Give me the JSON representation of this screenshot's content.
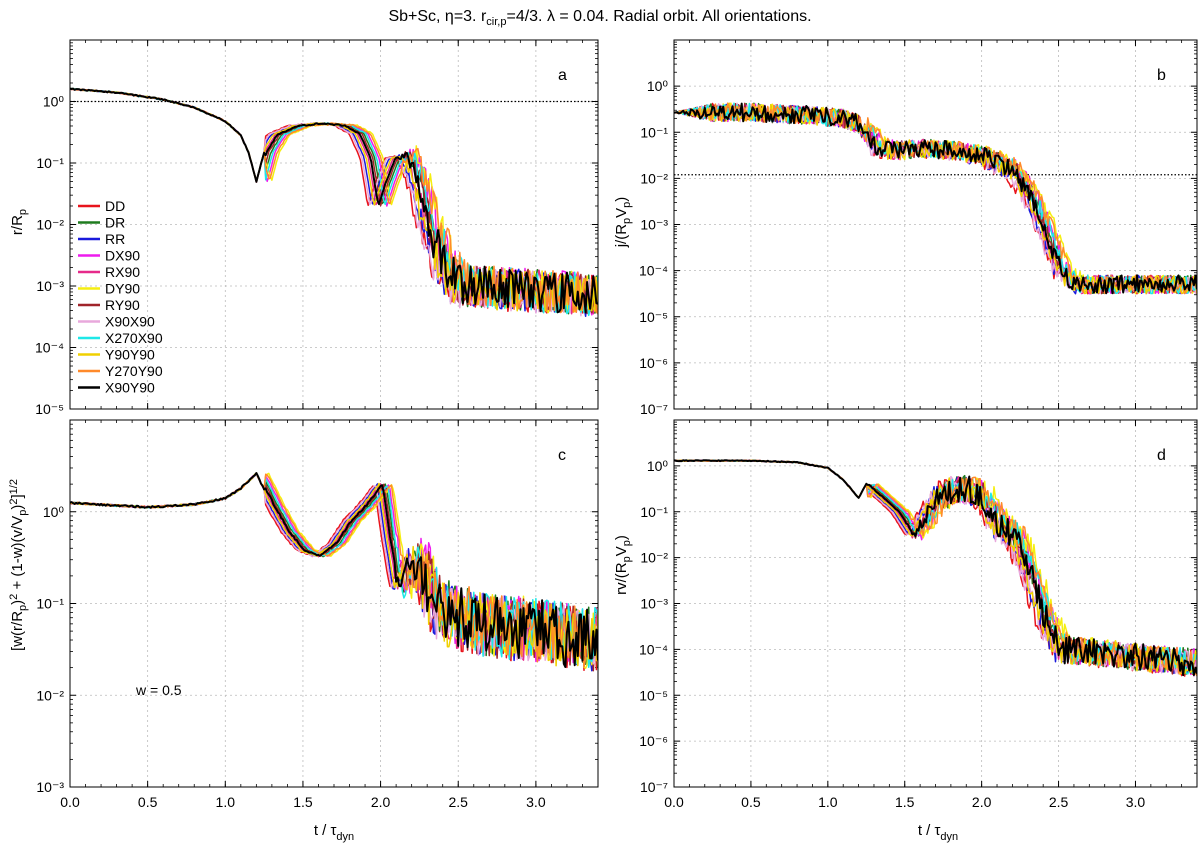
{
  "title": {
    "pre": "Sb+Sc, η=3. r",
    "sub": "cir,p",
    "post": "=4/3. λ = 0.04. Radial orbit. All orientations."
  },
  "xaxis": {
    "label_main": "t / τ",
    "label_sub": "dyn",
    "ticks": [
      "0.0",
      "0.5",
      "1.0",
      "1.5",
      "2.0",
      "2.5",
      "3.0"
    ]
  },
  "series": [
    {
      "name": "DD",
      "color": "#e8141c"
    },
    {
      "name": "DR",
      "color": "#1e7b1e"
    },
    {
      "name": "RR",
      "color": "#1a1adc"
    },
    {
      "name": "DX90",
      "color": "#ee1cee"
    },
    {
      "name": "RX90",
      "color": "#e62a8a"
    },
    {
      "name": "DY90",
      "color": "#f5ee10"
    },
    {
      "name": "RY90",
      "color": "#a0242a"
    },
    {
      "name": "X90X90",
      "color": "#e8a8dc"
    },
    {
      "name": "X270X90",
      "color": "#1ee8e8"
    },
    {
      "name": "Y90Y90",
      "color": "#f0d000"
    },
    {
      "name": "Y270Y90",
      "color": "#ff8a2a"
    },
    {
      "name": "X90Y90",
      "color": "#000000"
    }
  ],
  "chart_data": [
    {
      "type": "line",
      "panel": "a",
      "ylabel": "r/Rp",
      "xlim": [
        0,
        3.4
      ],
      "ylim": [
        1e-05,
        10
      ],
      "yscale": "log",
      "ytick_exponents": [
        -5,
        -4,
        -3,
        -2,
        -1,
        0
      ],
      "reference_line": 1.0,
      "legend_location": "left",
      "anchor": [
        [
          0,
          1.6
        ],
        [
          0.3,
          1.4
        ],
        [
          0.6,
          1.08
        ],
        [
          0.8,
          0.8
        ],
        [
          1.0,
          0.48
        ],
        [
          1.1,
          0.28
        ],
        [
          1.15,
          0.15
        ],
        [
          1.2,
          0.05
        ],
        [
          1.25,
          0.15
        ],
        [
          1.32,
          0.29
        ],
        [
          1.45,
          0.4
        ],
        [
          1.6,
          0.44
        ],
        [
          1.75,
          0.41
        ],
        [
          1.85,
          0.3
        ],
        [
          1.92,
          0.12
        ],
        [
          1.97,
          0.02
        ],
        [
          2.02,
          0.05
        ],
        [
          2.08,
          0.12
        ],
        [
          2.15,
          0.13
        ],
        [
          2.22,
          0.05
        ],
        [
          2.3,
          0.008
        ],
        [
          2.4,
          0.002
        ],
        [
          2.5,
          0.001
        ],
        [
          3.4,
          0.0007
        ]
      ],
      "shift_scale": 0.15,
      "noise_after": 2.1,
      "noise_amp": 0.35
    },
    {
      "type": "line",
      "panel": "b",
      "ylabel": "j/(RpVp)",
      "xlim": [
        0,
        3.4
      ],
      "ylim": [
        1e-07,
        10
      ],
      "yscale": "log",
      "ytick_exponents": [
        -7,
        -6,
        -5,
        -4,
        -3,
        -2,
        -1,
        0
      ],
      "reference_line": 0.012,
      "anchor": [
        [
          0,
          0.27
        ],
        [
          0.5,
          0.27
        ],
        [
          0.9,
          0.23
        ],
        [
          1.1,
          0.2
        ],
        [
          1.2,
          0.15
        ],
        [
          1.3,
          0.05
        ],
        [
          1.4,
          0.04
        ],
        [
          1.6,
          0.045
        ],
        [
          1.8,
          0.04
        ],
        [
          2.0,
          0.03
        ],
        [
          2.2,
          0.015
        ],
        [
          2.3,
          0.004
        ],
        [
          2.4,
          0.0008
        ],
        [
          2.5,
          0.0001
        ],
        [
          2.6,
          5e-05
        ],
        [
          3.4,
          5e-05
        ]
      ],
      "shift_scale": 0.12,
      "noise_after": 0.0,
      "noise_amp": 0.2
    },
    {
      "type": "line",
      "panel": "c",
      "ylabel": "[w(r/Rp)^2 + (1-w)(v/Vp)^2]^1/2",
      "annotation": "w = 0.5",
      "xlim": [
        0,
        3.4
      ],
      "ylim": [
        0.001,
        10
      ],
      "yscale": "log",
      "ytick_exponents": [
        -3,
        -2,
        -1,
        0
      ],
      "anchor": [
        [
          0,
          1.25
        ],
        [
          0.5,
          1.12
        ],
        [
          0.8,
          1.2
        ],
        [
          1.0,
          1.4
        ],
        [
          1.1,
          1.8
        ],
        [
          1.2,
          2.6
        ],
        [
          1.3,
          1.2
        ],
        [
          1.4,
          0.6
        ],
        [
          1.5,
          0.38
        ],
        [
          1.6,
          0.33
        ],
        [
          1.7,
          0.45
        ],
        [
          1.8,
          0.8
        ],
        [
          1.9,
          1.2
        ],
        [
          2.0,
          2.0
        ],
        [
          2.05,
          0.5
        ],
        [
          2.1,
          0.15
        ],
        [
          2.2,
          0.3
        ],
        [
          2.3,
          0.15
        ],
        [
          2.4,
          0.08
        ],
        [
          2.6,
          0.06
        ],
        [
          3.0,
          0.05
        ],
        [
          3.4,
          0.04
        ]
      ],
      "shift_scale": 0.12,
      "noise_after": 2.05,
      "noise_amp": 0.35
    },
    {
      "type": "line",
      "panel": "d",
      "ylabel": "rv/(RpVp)",
      "xlim": [
        0,
        3.4
      ],
      "ylim": [
        1e-07,
        10
      ],
      "yscale": "log",
      "ytick_exponents": [
        -7,
        -6,
        -5,
        -4,
        -3,
        -2,
        -1,
        0
      ],
      "anchor": [
        [
          0,
          1.3
        ],
        [
          0.5,
          1.3
        ],
        [
          0.8,
          1.2
        ],
        [
          1.0,
          0.9
        ],
        [
          1.1,
          0.5
        ],
        [
          1.2,
          0.2
        ],
        [
          1.25,
          0.4
        ],
        [
          1.35,
          0.2
        ],
        [
          1.45,
          0.1
        ],
        [
          1.55,
          0.03
        ],
        [
          1.6,
          0.06
        ],
        [
          1.7,
          0.2
        ],
        [
          1.8,
          0.3
        ],
        [
          1.9,
          0.31
        ],
        [
          2.0,
          0.2
        ],
        [
          2.1,
          0.05
        ],
        [
          2.2,
          0.03
        ],
        [
          2.3,
          0.005
        ],
        [
          2.4,
          0.0005
        ],
        [
          2.5,
          0.0001
        ],
        [
          3.4,
          5e-05
        ]
      ],
      "shift_scale": 0.12,
      "noise_after": 1.5,
      "noise_amp": 0.3
    }
  ]
}
